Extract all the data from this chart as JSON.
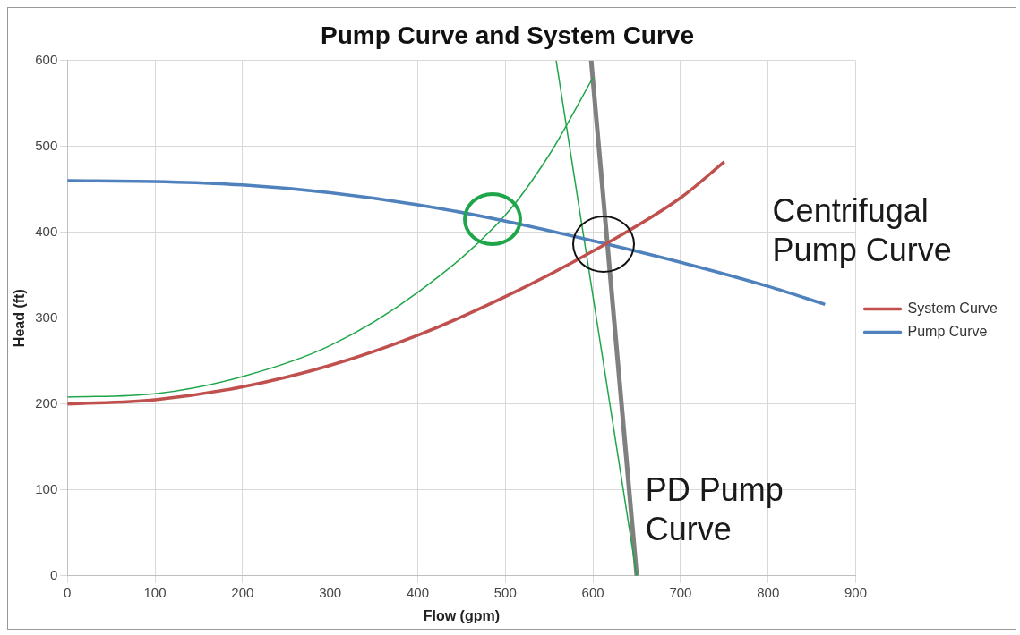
{
  "chart_data": {
    "type": "line",
    "title": "Pump Curve and System Curve",
    "xlabel": "Flow (gpm)",
    "ylabel": "Head (ft)",
    "xlim": [
      0,
      900
    ],
    "xticks": [
      0,
      100,
      200,
      300,
      400,
      500,
      600,
      700,
      800,
      900
    ],
    "ylim": [
      0,
      600
    ],
    "yticks": [
      0,
      100,
      200,
      300,
      400,
      500,
      600
    ],
    "grid": true,
    "legend": "right",
    "marker": "none",
    "series": [
      {
        "name": "System Curve",
        "color": "#c0504d",
        "x": [
          0,
          100,
          200,
          300,
          400,
          500,
          600,
          700,
          750
        ],
        "values": [
          200,
          205,
          220,
          245,
          280,
          325,
          378,
          440,
          482
        ]
      },
      {
        "name": "Pump Curve",
        "color": "#4f81bd",
        "x": [
          0,
          100,
          200,
          300,
          400,
          500,
          600,
          700,
          800,
          865
        ],
        "values": [
          460,
          459,
          455,
          446,
          432,
          413,
          390,
          365,
          337,
          316
        ]
      },
      {
        "color": "#1fa64a",
        "x": [
          0,
          100,
          200,
          300,
          400,
          500,
          550,
          600
        ],
        "values": [
          208,
          212,
          232,
          268,
          330,
          420,
          490,
          580
        ]
      },
      {
        "color": "#1fa64a",
        "x": [
          558,
          650
        ],
        "values": [
          600,
          0
        ]
      },
      {
        "color": "#808080",
        "x": [
          598,
          650
        ],
        "values": [
          600,
          0
        ]
      }
    ],
    "annotations": [
      "Centrifugal Pump Curve",
      "PD Pump Curve"
    ]
  }
}
